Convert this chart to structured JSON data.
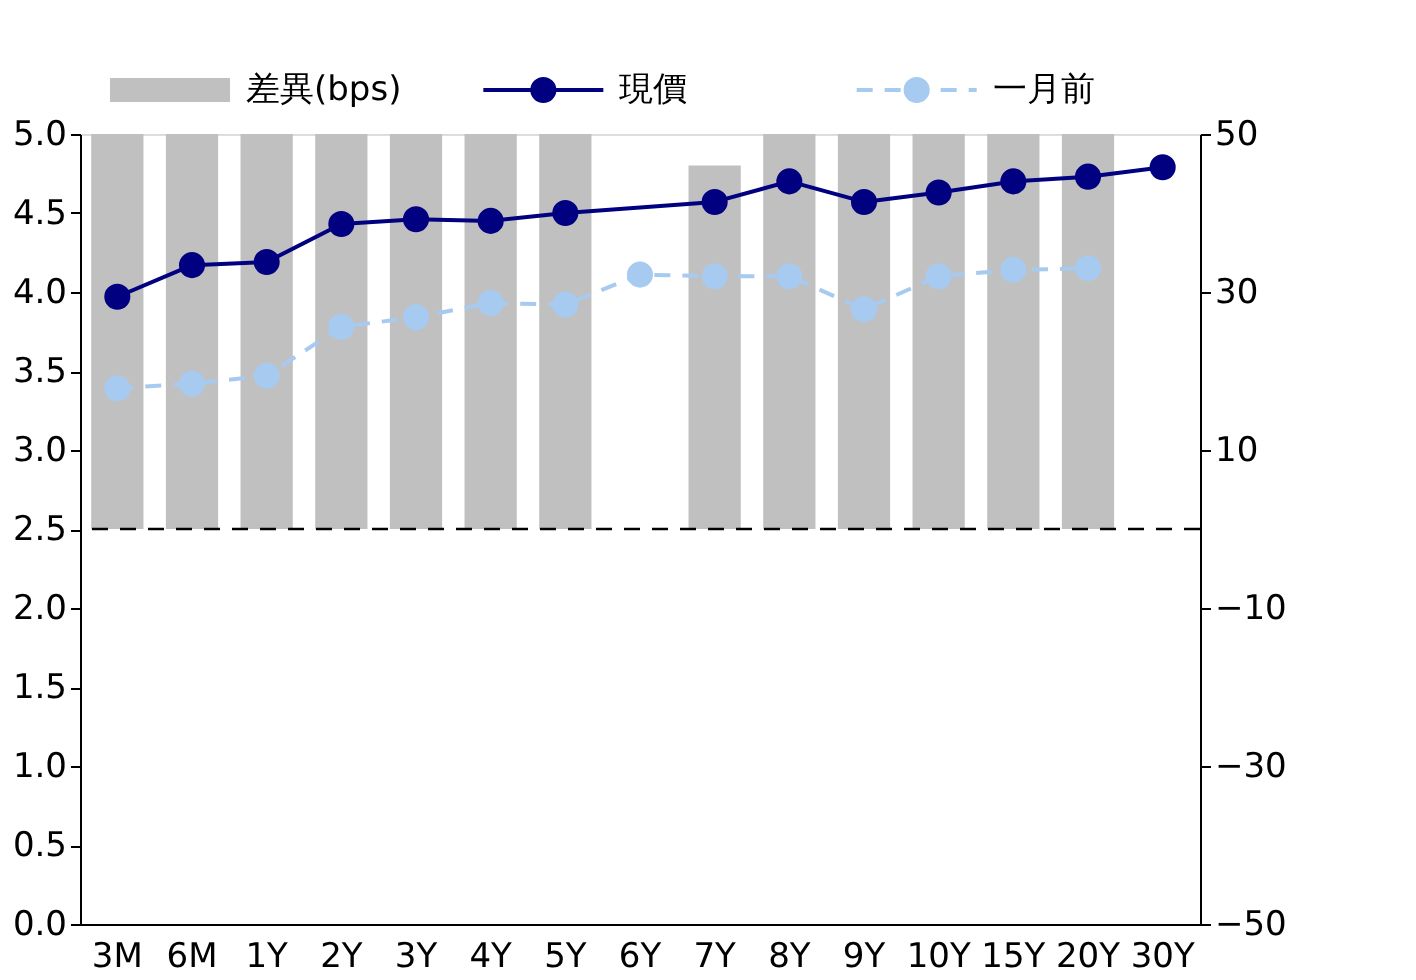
{
  "chart_data": {
    "type": "bar",
    "categories": [
      "3M",
      "6M",
      "1Y",
      "2Y",
      "3Y",
      "4Y",
      "5Y",
      "6Y",
      "7Y",
      "8Y",
      "9Y",
      "10Y",
      "15Y",
      "20Y",
      "30Y"
    ],
    "series": [
      {
        "name": "差異(bps)",
        "axis": "y2",
        "color": "#c0c0c0",
        "values": [
          50,
          50,
          50,
          50,
          50,
          50,
          50,
          null,
          46,
          50,
          50,
          50,
          50,
          50,
          null
        ]
      },
      {
        "name": "現價",
        "type": "line",
        "color": "#000080",
        "marker": "circle",
        "line_style": "solid",
        "values": [
          3.97,
          4.17,
          4.19,
          4.43,
          4.46,
          4.45,
          4.5,
          null,
          4.57,
          4.7,
          4.57,
          4.63,
          4.7,
          4.73,
          4.79
        ]
      },
      {
        "name": "一月前",
        "type": "line",
        "color": "#a6caf0",
        "marker": "circle",
        "line_style": "dashed",
        "values": [
          3.39,
          3.42,
          3.47,
          3.78,
          3.84,
          3.93,
          3.92,
          4.11,
          4.1,
          4.1,
          3.89,
          4.1,
          4.14,
          4.15,
          null
        ]
      }
    ],
    "ylim": [
      0,
      5
    ],
    "yticks": [
      {
        "value": 0,
        "label": "0.0"
      },
      {
        "value": 0.5,
        "label": "0.5"
      },
      {
        "value": 1,
        "label": "1.0"
      },
      {
        "value": 1.5,
        "label": "1.5"
      },
      {
        "value": 2,
        "label": "2.0"
      },
      {
        "value": 2.5,
        "label": "2.5"
      },
      {
        "value": 3,
        "label": "3.0"
      },
      {
        "value": 3.5,
        "label": "3.5"
      },
      {
        "value": 4,
        "label": "4.0"
      },
      {
        "value": 4.5,
        "label": "4.5"
      },
      {
        "value": 5,
        "label": "5.0"
      }
    ],
    "y2lim": [
      -50,
      50
    ],
    "y2ticks": [
      -50,
      -30,
      -10,
      10,
      30,
      50
    ],
    "ref_lines": [
      {
        "axis": "y2",
        "value": 0,
        "color": "#000000",
        "line_style": "dashed"
      }
    ],
    "legend": "top",
    "grid": false
  }
}
